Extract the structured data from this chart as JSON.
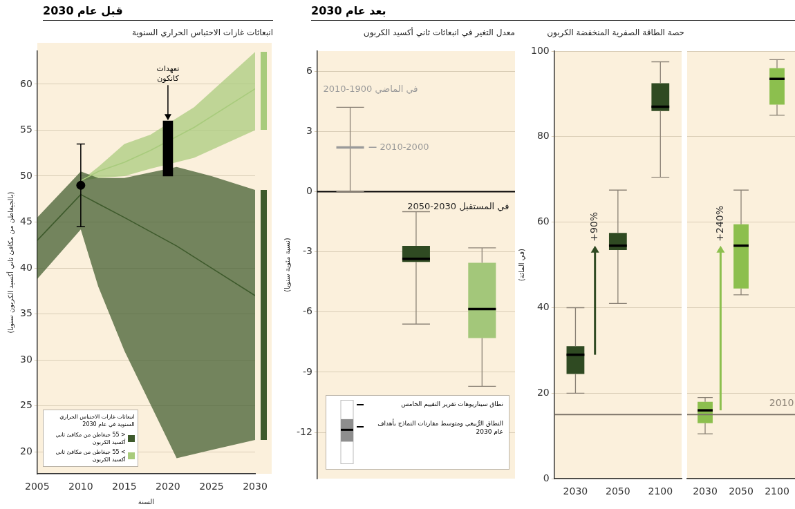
{
  "chart_data": [
    {
      "type": "line",
      "title": "قبل عام 2030",
      "subtitle": "انبعاثات غازات الاحتباس الحراري السنوية",
      "xlabel": "السنة",
      "ylabel": "(بالجيغاطن من مكافئ ثاني أكسيد الكربون سنويا)",
      "legend_title": "انبعاثات غازات الاحتباس الحراري السنوية في عام 2030",
      "legend": "bottom left",
      "xlim": [
        2005,
        2030
      ],
      "xticks": [
        2005,
        2010,
        2015,
        2020,
        2025,
        2030
      ],
      "ylim": [
        17.6,
        63.6
      ],
      "yticks": [
        20,
        25,
        30,
        35,
        40,
        45,
        50,
        55,
        60
      ],
      "grid": "y",
      "series": [
        {
          "name": "< 55 جيغاطن من مكافئ ثاني أكسيد الكربون",
          "type": "line",
          "color": "#3e5a2c",
          "x": [
            2005,
            2010,
            2012,
            2015,
            2021,
            2025,
            2030
          ],
          "values": [
            43,
            48,
            47,
            45.5,
            42.4,
            40,
            37
          ],
          "lower": [
            38.8,
            44.2,
            38,
            31,
            19.3,
            20.2,
            21.3
          ],
          "upper": [
            45.5,
            50.5,
            49.8,
            49.8,
            51,
            50,
            48.5
          ]
        },
        {
          "name": "> 55 جيغاطن من مكافئ ثاني أكسيد الكربون",
          "type": "line",
          "color": "#a8cb7c",
          "x": [
            2010,
            2012,
            2015,
            2018,
            2023,
            2030
          ],
          "values": [
            49.5,
            50.5,
            51.5,
            52.8,
            55.3,
            59.5
          ],
          "lower": [
            49.5,
            49.8,
            50,
            50.8,
            52,
            55
          ],
          "upper": [
            49.5,
            51,
            53.5,
            54.5,
            57.5,
            63.5
          ]
        },
        {
          "type": "scatter",
          "color": "#000000",
          "marker": "circle",
          "x": [
            2010
          ],
          "values": [
            49
          ],
          "errors": [
            [
              44.5,
              53.5
            ]
          ]
        },
        {
          "type": "bar",
          "color": "#000000",
          "x": [
            2020
          ],
          "base": [
            50
          ],
          "values": [
            6
          ]
        }
      ],
      "annotations": [
        {
          "text": "تعهدات كانكون",
          "x": 2020,
          "y": 56
        }
      ]
    },
    {
      "type": "box",
      "title": "بعد عام 2030",
      "subtitle": "معدل التغير في انبعاثات ثاني أكسيد الكربون",
      "ylabel": "(نسبة مئوية سنويا)",
      "categories": [
        null,
        null,
        null
      ],
      "ylim": [
        -14.3,
        7
      ],
      "yticks": [
        -12,
        -9,
        -6,
        -3,
        0,
        3,
        6
      ],
      "grid": "y",
      "tick_labels": "y",
      "series": [
        {
          "colors": [
            "#9a9a9a",
            "#2f4a22",
            "#a3c77a"
          ],
          "boxes": [
            {
              "low": 0,
              "q1": 2.2,
              "median": 2.2,
              "q3": 2.2,
              "high": 4.2
            },
            {
              "low": -6.6,
              "q1": -3.5,
              "median": -3.35,
              "q3": -2.7,
              "high": -1.0
            },
            {
              "low": -9.7,
              "q1": -7.3,
              "median": -5.85,
              "q3": -3.55,
              "high": -2.8
            }
          ]
        }
      ],
      "ref_lines": [
        {
          "axis": "y",
          "value": 0,
          "color": "#000000"
        }
      ],
      "annotations": [
        "في الماضي 1900-2010",
        "2010-2000",
        "في المستقبل 2030-2050",
        "نطاق سيناريوهات تقرير التقييم الخامس",
        "النطاق الرُّبيعي ومتوسط مقارنات النماذج بأهداف عام 2030"
      ]
    },
    {
      "type": "box",
      "subtitle": "حصة الطاقة الصفرية المنخفضة الكربون",
      "ylabel": "(في المائة)",
      "categories": [
        "2030",
        "2050",
        "2100"
      ],
      "ylim": [
        0,
        100
      ],
      "yticks": [
        0,
        20,
        40,
        60,
        80,
        100
      ],
      "grid": "y",
      "series": [
        {
          "color": "#2f4a22",
          "boxes": [
            {
              "low": 20,
              "q1": 24.5,
              "median": 29,
              "q3": 31,
              "high": 40
            },
            {
              "low": 41,
              "q1": 53.5,
              "median": 54.5,
              "q3": 57.5,
              "high": 67.5
            },
            {
              "low": 70.5,
              "q1": 86,
              "median": 87,
              "q3": 92.5,
              "high": 97.5
            }
          ]
        }
      ],
      "ref_lines": [
        {
          "axis": "y",
          "value": 15,
          "color": "#7d7468"
        }
      ],
      "annotations": [
        "+90%"
      ]
    },
    {
      "type": "box",
      "categories": [
        "2030",
        "2050",
        "2100"
      ],
      "ylim": [
        0,
        100
      ],
      "yticks": [
        0,
        20,
        40,
        60,
        80,
        100
      ],
      "grid": "y",
      "tick_labels": "x",
      "series": [
        {
          "color": "#8cbf4e",
          "boxes": [
            {
              "low": 10.5,
              "q1": 13,
              "median": 16,
              "q3": 18,
              "high": 19
            },
            {
              "low": 43,
              "q1": 44.5,
              "median": 54.5,
              "q3": 59.5,
              "high": 67.5
            },
            {
              "low": 85,
              "q1": 87.5,
              "median": 93.5,
              "q3": 96,
              "high": 98
            }
          ]
        }
      ],
      "ref_lines": [
        {
          "axis": "y",
          "value": 15,
          "color": "#7d7468"
        }
      ],
      "annotations": [
        "+240%",
        "2010"
      ]
    }
  ]
}
